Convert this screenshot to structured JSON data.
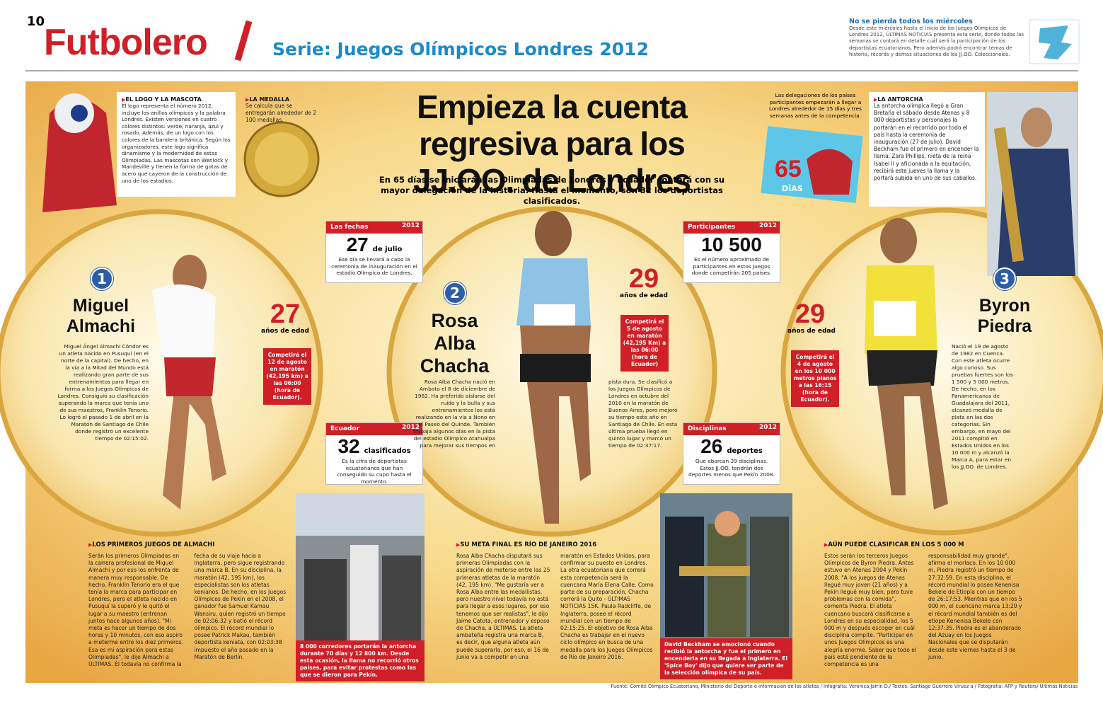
{
  "header": {
    "page_number": "10",
    "section": "Futbolero",
    "series": "Serie: Juegos Olímpicos Londres 2012",
    "promo_title": "No se pierda todos los miércoles",
    "promo_text": "Desde este miércoles hasta el inicio de los Juegos Olímpicos de Londres 2012, ÚLTIMAS NOTICIAS presenta esta serie, donde todas las semanas se contará en detalle cuál será la participación de los deportistas ecuatorianos. Pero además podrá encontrar temas de historia, récords y demás situaciones de los JJ.OO. Coleccionelos."
  },
  "headline": {
    "title": "Empieza la cuenta regresiva para los JJ.OO. de Londres",
    "deck": "En 65 días se iniciarán las Olimpiadas de Londres y Ecuador contará con su mayor delegación de la historia. Hasta el momento, son 32 los deportistas clasificados."
  },
  "sidebars": {
    "logo": {
      "heading": "EL LOGO Y LA MASCOTA",
      "text": "El logo representa el número 2012, incluye los anillos olímpicos y la palabra Londres. Existen versiones en cuatro colores distintos: verde, naranja, azul y rosado. Además, de un logo con los colores de la bandera británica. Según los organizadores, este logo significa dinamismo y la modernidad de estas Olimpiadas. Las mascotas son Wenlock y Mandeville y tienen la forma de gotas de acero que cayeron de la construcción de uno de los estadios."
    },
    "medal": {
      "heading": "LA MEDALLA",
      "text": "Se calcula que se entregarán alrededor de 2 100 medallas."
    },
    "countdown": {
      "text": "Las delegaciones de los países participantes empezarán a llegar a Londres alrededor de 15 días y tres semanas antes de la competencia.",
      "number": "65",
      "unit": "DÍAS"
    },
    "torch": {
      "heading": "LA ANTORCHA",
      "text": "La antorcha olímpica llegó a Gran Bretaña el sábado desde Atenas y 8 000 deportistas y personajes la portarán en el recorrido por todo el país hasta la ceremonia de inauguración (27 de julio). David Beckham fue el primero en encender la llama. Zara Phillips, nieta de la reina Isabel II y aficionada a la equitación, recibirá este jueves la llama y la portará subida en uno de sus caballos."
    }
  },
  "facts": {
    "badge": "2012",
    "items": [
      {
        "label": "Las fechas",
        "number": "27",
        "unit": "de julio",
        "text": "Ese día se llevará a cabo la ceremonia de inauguración en el estadio Olímpico de Londres."
      },
      {
        "label": "Participantes",
        "number": "10 500",
        "text": "Es el número aproximado de participantes en estos Juegos donde competirán 205 países."
      },
      {
        "label": "Ecuador",
        "number": "32",
        "unit": "clasificados",
        "text": "Es la cifra de deportistas ecuatorianos que han conseguido su cupo hasta el momento."
      },
      {
        "label": "Disciplinas",
        "number": "26",
        "unit": "deportes",
        "text": "Que abarcan 39 disciplinas. Estos JJ.OO. tendrán dos deportes menos que Pekín 2008."
      }
    ]
  },
  "athletes": [
    {
      "number": "1",
      "name": "Miguel Almachi",
      "age": "27",
      "age_label": "años de edad",
      "event": "Competirá el 12 de agosto en maratón (42,195 km) a las 06:00 (hora de Ecuador).",
      "bio": [
        "Miguel Ángel Almachi Cóndor es un atleta nacido en Pusuquí (en el norte de la capital). De hecho, en la vía a la Mitad del Mundo está realizando gran parte de sus entrenamientos para llegar en forma a los Juegos Olímpicos de Londres. Consiguió su clasificación superando la marca que tenía uno de sus maestros, Franklin Tenorio. Lo logró el pasado 1 de abril en la Maratón de Santiago de Chile donde registró un excelente tiempo de 02:15:02."
      ],
      "section_heading": "LOS PRIMEROS JUEGOS DE ALMACHI",
      "article": "Serán los primeros Olimpiadas en la carrera profesional de Miguel Almachi y por eso los enfrenta de manera muy responsable. De hecho, Franklin Tenorio era el que tenía la marca para participar en Londres, pero el atleta nacido en Pusuquí la superó y le quitó el lugar a su maestro (entrenan juntos hace algunos años). \"Mi meta es hacer un tiempo de dos horas y 10 minutos, con eso aspiro a meterme entre los diez primeros. Esa es mi aspiración para estas Olimpiadas\", le dijo Almachi a ÚLTIMAS. Él todavía no confirma la fecha de su viaje hacia a Inglaterra, pero sigue registrando una marca B. En su disciplina, la maratón (42, 195 km), los especialistas son los atletas kenianos. De hecho, en los Juegos Olímpicos de Pekín en el 2008, el ganador fue Samuel Kamau Wansiru, quien registró un tiempo de 02:06:32 y batió el récord olímpico. El récord mundial lo posee Patrick Makau, también deportista keniata, con 02:03:38 impuesto el año pasado en la Maratón de Berlín."
    },
    {
      "number": "2",
      "name": "Rosa Alba Chacha",
      "age": "29",
      "age_label": "años de edad",
      "event": "Competirá el 5 de agosto en maratón (42,195 Km) a las 06:00 (hora de Ecuador)",
      "bio": [
        "Rosa Alba Chacha nació en Ambato el 8 de diciembre de 1982. Ha preferido aislarse del ruido y la bulla y sus entrenamientos los está realizando en la vía a Nono en el Paseo del Quinde. También trabaja algunos días en la pista del estadio Olímpico Atahualpa para mejorar sus tiempos en",
        "pista dura. Se clasificó a los Juegos Olímpicos de Londres en octubre del 2010 en la maratón de Buenos Aires, pero mejoró su tiempo este año en Santiago de Chile. En esta última prueba llegó en quinto lugar y marcó un tiempo de 02:37:17."
      ],
      "section_heading": "SU META FINAL ES RÍO DE JANEIRO 2016",
      "article": "Rosa Alba Chacha disputará sus primeras Olimpiadas con la aspiración de meterse entre las 25 primeras atletas de la maratón (42, 195 km). \"Me gustaría ver a Rosa Alba entre las medallistas, pero nuestro nivel todavía no está para llegar a esos lugares, por eso tenemos que ser realistas\", le dijo Jaime Catota, entrenador y esposo de Chacha, a ÚLTIMAS. La atleta ambateña registra una marca B, es decir, que alguna atleta aún puede superarla, por eso, el 16 de junio va a competir en una maratón en Estados Unidos, para confirmar su puesto en Londres. La otra ecuatoriana que correrá esta competencia será la cuencana María Elena Calle. Como parte de su preparación, Chacha correrá la Quito - ÚLTIMAS NOTICIAS 15K. Paula Radcliffe, de Inglaterra, posee el récord mundial con un tiempo de 02:15:25. El objetivo de Rosa Alba Chacha es trabajar en el nuevo ciclo olímpico en busca de una medalla para los Juegos Olímpicos de Río de Janeiro 2016."
    },
    {
      "number": "3",
      "name": "Byron Piedra",
      "age": "29",
      "age_label": "años de edad",
      "event": "Competirá el 4 de agosto en los 10 000 metros planos a las 16:15 (hora de Ecuador).",
      "bio": [
        "Nació el 19 de agosto de 1982 en Cuenca. Con este atleta ocurre algo curioso. Sus pruebas fuertes son los 1 500 y 5 000 metros. De hecho, en los Panamericanos de Guadalajara del 2011, alcanzó medalla de plata en las dos categorías. Sin embargo, en mayo del 2011 compitió en Estados Unidos en los 10 000 m y alcanzó la Marca A, para estar en los JJ.OO. de Londres."
      ],
      "section_heading": "AÚN PUEDE CLASIFICAR EN LOS 5 000 M",
      "article": "Estos serán los terceros Juegos Olímpicos de Byron Piedra. Antes estuvo en Atenas 2004 y Pekín 2008. \"A los juegos de Atenas llegué muy joven (21 años) y a Pekín llegué muy bien, pero tuve problemas con la comida\", comenta Piedra. El atleta cuencano buscará clasificarse a Londres en su especialidad, los 5 000 m y después escoger en cuál disciplina compite. \"Participar en unos Juegos Olímpicos es una alegría enorme. Saber que todo el país está pendiente de la competencia es una responsabilidad muy grande\", afirma el morlaco. En los 10 000 m, Piedra registró un tiempo de 27:32:59. En esta disciplina, el récord mundial lo posee Kenenisa Bekele de Etiopía con un tiempo de 26:17:53. Mientras que en los 5 000 m, el cuencano marca 13:20 y el récord mundial también es del etiope Kenenisa Bekele con 12:37:35. Piedra es el abanderado del Azuay en los Juegos Nacionales que se disputarán desde este viernes hasta el 3 de junio."
    }
  ],
  "photos": [
    {
      "caption": "8 000 corredores portarán la antorcha durante 70 días y 12 800 km. Desde esta ocasión, la llama no recorrió otros países, para evitar protestas como las que se dieron para Pekín."
    },
    {
      "caption": "David Beckham se emocionó cuando recibió la antorcha y fue el primero en encenderla en su llegada a Inglaterra. El 'Spice Boy' dijo que quiere ser parte de la selección olímpica de su país."
    }
  ],
  "footer": {
    "source": "Fuente: Comité Olímpico Ecuatoriano, Ministerio del Deporte e información de los atletas / Infografía: Verónica Jarrín D./ Textos: Santiago Guerrero Viruez a / Fotografía: AFP y Reuters/ Últimas Noticias"
  }
}
